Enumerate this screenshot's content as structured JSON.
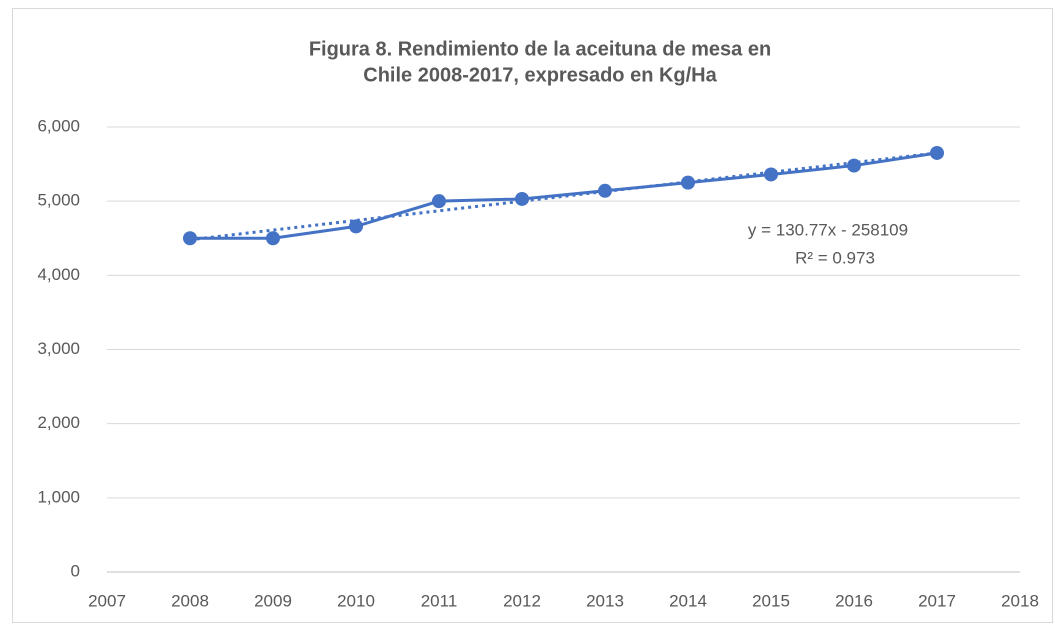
{
  "chart_data": {
    "type": "line",
    "title": [
      "Figura 8. Rendimiento de la aceituna de mesa en",
      "Chile 2008-2017, expresado en Kg/Ha"
    ],
    "x": [
      2008,
      2009,
      2010,
      2011,
      2012,
      2013,
      2014,
      2015,
      2016,
      2017
    ],
    "series": [
      {
        "color": "#4472c4",
        "values": [
          4500,
          4500,
          4660,
          5000,
          5030,
          5140,
          5250,
          5360,
          5480,
          5650
        ]
      }
    ],
    "trendline": {
      "x": [
        2008,
        2017
      ],
      "values": [
        4480,
        5650
      ],
      "style": "dotted",
      "color": "#4472c4"
    },
    "annotations": [
      "y = 130.77x - 258109",
      "R² = 0.973"
    ],
    "xlim": [
      2007,
      2018
    ],
    "xticks": [
      2007,
      2008,
      2009,
      2010,
      2011,
      2012,
      2013,
      2014,
      2015,
      2016,
      2017,
      2018
    ],
    "ylim": [
      0,
      6000
    ],
    "yticks": [
      0,
      {
        "value": 1000,
        "label": "1,000"
      },
      {
        "value": 2000,
        "label": "2,000"
      },
      {
        "value": 3000,
        "label": "3,000"
      },
      {
        "value": 4000,
        "label": "4,000"
      },
      {
        "value": 5000,
        "label": "5,000"
      },
      {
        "value": 6000,
        "label": "6,000"
      }
    ],
    "grid": true
  }
}
